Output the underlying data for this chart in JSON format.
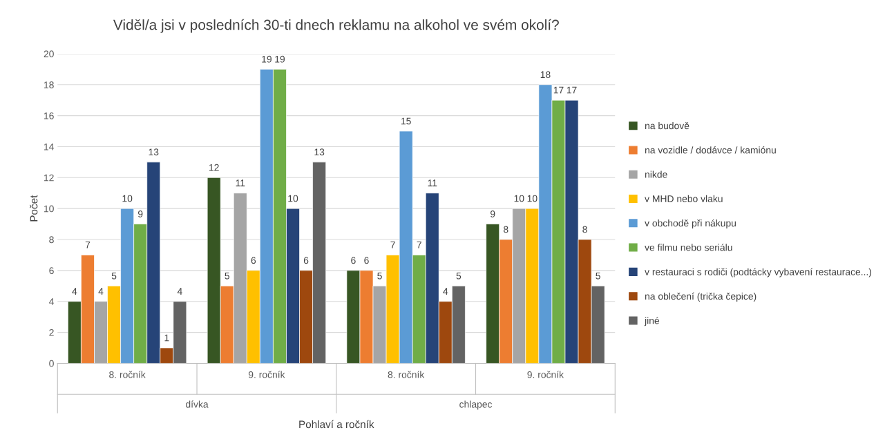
{
  "chart_data": {
    "type": "bar",
    "title": "Viděl/a jsi v posledních 30-ti dnech reklamu na alkohol ve svém okolí?",
    "xlabel": "Pohlaví a ročník",
    "ylabel": "Počet",
    "categories": [
      "8. ročník",
      "9. ročník",
      "8. ročník",
      "9. ročník"
    ],
    "annotations": [
      "dívka",
      "chlapec"
    ],
    "series": [
      {
        "name": "na budově",
        "color": "#375623",
        "values": [
          4,
          12,
          6,
          9
        ]
      },
      {
        "name": "na vozidle / dodávce / kamiónu",
        "color": "#ed7d31",
        "values": [
          7,
          5,
          6,
          8
        ]
      },
      {
        "name": "nikde",
        "color": "#a5a5a5",
        "values": [
          4,
          11,
          5,
          10
        ]
      },
      {
        "name": "v MHD nebo vlaku",
        "color": "#ffc000",
        "values": [
          5,
          6,
          7,
          10
        ]
      },
      {
        "name": "v obchodě při nákupu",
        "color": "#5b9bd5",
        "values": [
          10,
          19,
          15,
          18
        ]
      },
      {
        "name": "ve filmu nebo seriálu",
        "color": "#70ad47",
        "values": [
          9,
          19,
          7,
          17
        ]
      },
      {
        "name": "v restauraci s rodiči (podtácky vybavení restaurace...)",
        "color": "#264478",
        "values": [
          13,
          10,
          11,
          17
        ]
      },
      {
        "name": "na oblečení (trička čepice)",
        "color": "#9e480e",
        "values": [
          1,
          6,
          4,
          8
        ]
      },
      {
        "name": "jiné",
        "color": "#636363",
        "values": [
          4,
          13,
          5,
          5
        ]
      }
    ],
    "ylim": [
      0,
      20
    ],
    "yticks": [
      0,
      2,
      4,
      6,
      8,
      10,
      12,
      14,
      16,
      18,
      20
    ],
    "grid": "y",
    "legend": "right",
    "data_labels": true
  }
}
